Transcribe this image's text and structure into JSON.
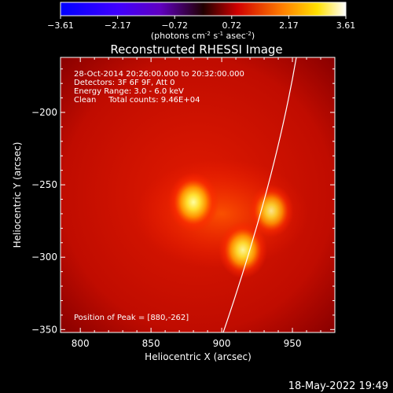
{
  "colorbar": {
    "ticks": [
      "-3.61",
      "-2.17",
      "-0.72",
      "0.72",
      "2.17",
      "3.61"
    ],
    "units_label": "(photons cm",
    "units_sup1": "-2",
    "units_mid1": " s",
    "units_sup2": "-1",
    "units_mid2": " asec",
    "units_sup3": "-2",
    "units_end": ")",
    "colors": [
      "#0000ff",
      "#8000ff",
      "#000000",
      "#ff0000",
      "#ffff00",
      "#ffffff"
    ]
  },
  "chart_data": {
    "type": "heatmap",
    "title": "Reconstructed RHESSI Image",
    "xlabel": "Heliocentric X (arcsec)",
    "ylabel": "Heliocentric Y (arcsec)",
    "xlim": [
      786,
      980
    ],
    "ylim": [
      -352,
      -162
    ],
    "xticks": [
      800,
      850,
      900,
      950
    ],
    "yticks": [
      -200,
      -250,
      -300,
      -350
    ],
    "xtick_labels": [
      "800",
      "850",
      "900",
      "950"
    ],
    "ytick_labels": [
      "−200",
      "−250",
      "−300",
      "−350"
    ],
    "info_lines": [
      "28-Oct-2014 20:26:00.000 to 20:32:00.000",
      "Detectors: 3F 6F 9F, Att 0",
      "Energy Range: 3.0 - 6.0 keV",
      "Clean     Total counts: 9.46E+04"
    ],
    "peak_text": "Position of Peak = [880,-262]",
    "sources": [
      {
        "x": 880,
        "y": -262,
        "intensity": 1.0
      },
      {
        "x": 915,
        "y": -295,
        "intensity": 0.9
      },
      {
        "x": 935,
        "y": -268,
        "intensity": 0.72
      }
    ]
  },
  "timestamp": "18-May-2022 19:49"
}
